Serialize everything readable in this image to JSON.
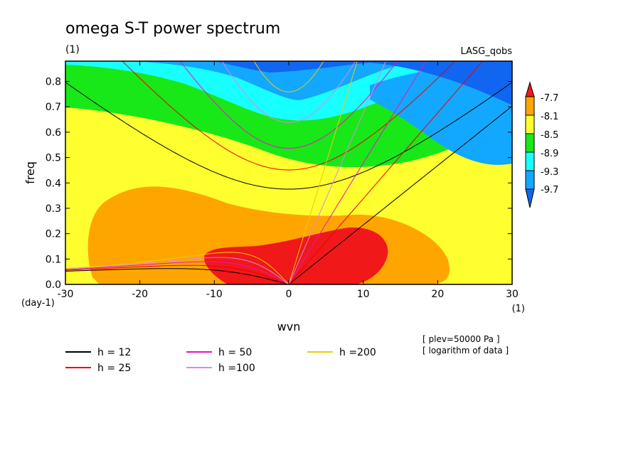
{
  "chart_data": {
    "type": "heatmap",
    "title": "omega S-T power spectrum",
    "subtitle_left": "(1)",
    "subtitle_right": "LASG_qobs",
    "xlabel": "wvn",
    "ylabel": "freq",
    "x_unit": "(1)",
    "y_unit": "(day-1)",
    "xlim": [
      -30,
      30
    ],
    "ylim": [
      0,
      0.88
    ],
    "xticks": [
      -30,
      -20,
      -10,
      0,
      10,
      20,
      30
    ],
    "yticks": [
      0.0,
      0.1,
      0.2,
      0.3,
      0.4,
      0.5,
      0.6,
      0.7,
      0.8
    ],
    "contour_levels": [
      -9.7,
      -9.3,
      -8.9,
      -8.5,
      -8.1,
      -7.7
    ],
    "colorbar_labels": [
      "-7.7",
      "-8.1",
      "-8.5",
      "-8.9",
      "-9.3",
      "-9.7"
    ],
    "fill_colors": {
      "above_-7.7": "#f01818",
      "-8.1_to_-7.7": "#ffa500",
      "-8.5_to_-8.1": "#ffff30",
      "-8.9_to_-8.5": "#18e818",
      "-9.3_to_-8.9": "#18ffff",
      "-9.7_to_-9.3": "#12a8ff",
      "below_-9.7": "#1066f0"
    },
    "dispersion_curves": [
      {
        "label": "h = 12",
        "h": 12,
        "color": "#000000"
      },
      {
        "label": "h = 25",
        "h": 25,
        "color": "#ee0000"
      },
      {
        "label": "h = 50",
        "h": 50,
        "color": "#ee10c0"
      },
      {
        "label": "h =100",
        "h": 100,
        "color": "#dd88dd"
      },
      {
        "label": "h =200",
        "h": 200,
        "color": "#eecc00"
      }
    ],
    "annotations": [
      "[ plev=50000 Pa ]",
      "[ logarithm of data ]"
    ]
  }
}
